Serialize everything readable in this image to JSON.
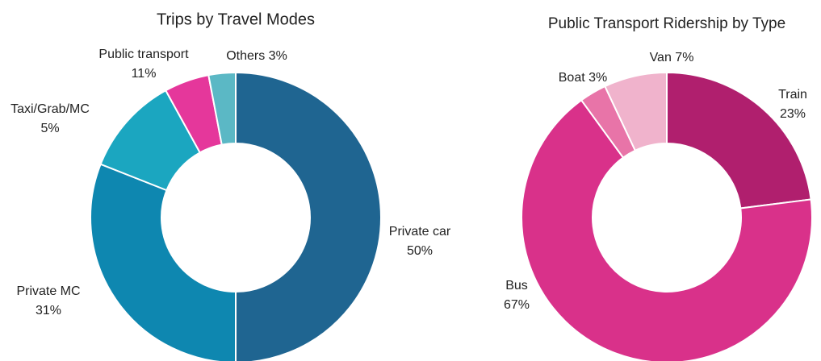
{
  "chart_data": [
    {
      "type": "donut",
      "title": "Trips by Travel Modes",
      "categories": [
        "Private car",
        "Private MC",
        "Public transport",
        "Taxi/Grab/MC",
        "Others"
      ],
      "values": [
        50,
        31,
        11,
        5,
        3
      ],
      "value_labels": [
        "50%",
        "31%",
        "11%",
        "5%",
        "3%"
      ],
      "colors": [
        "#1f6591",
        "#0e87b0",
        "#1ba6c0",
        "#e5379b",
        "#5bb8c5"
      ]
    },
    {
      "type": "donut",
      "title": "Public Transport Ridership by Type",
      "categories": [
        "Train",
        "Bus",
        "Boat",
        "Van"
      ],
      "values": [
        23,
        67,
        3,
        7
      ],
      "value_labels": [
        "23%",
        "67%",
        "3%",
        "7%"
      ],
      "colors": [
        "#b01f6e",
        "#d9318a",
        "#e874a8",
        "#f0b3cc"
      ]
    }
  ]
}
